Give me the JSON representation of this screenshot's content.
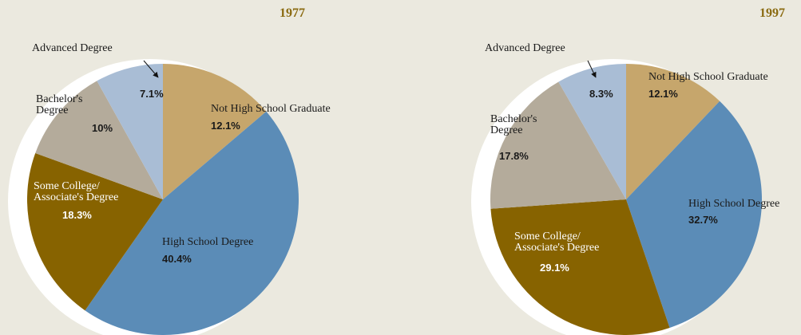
{
  "chart_data": [
    {
      "type": "pie",
      "title": "1977",
      "categories": [
        "Not High School Graduate",
        "High School Degree",
        "Some College/ Associate's Degree",
        "Bachelor's Degree",
        "Advanced Degree"
      ],
      "values": [
        12.1,
        40.4,
        18.3,
        10,
        7.1
      ],
      "value_labels": [
        "12.1%",
        "40.4%",
        "18.3%",
        "10%",
        "7.1%"
      ],
      "colors": [
        "#c6a66c",
        "#5b8cb7",
        "#876300",
        "#b4ab9b",
        "#a9bdd5"
      ]
    },
    {
      "type": "pie",
      "title": "1997",
      "categories": [
        "Not High School Graduate",
        "High School Degree",
        "Some College/ Associate's Degree",
        "Bachelor's Degree",
        "Advanced Degree"
      ],
      "values": [
        12.1,
        32.7,
        29.1,
        17.8,
        8.3
      ],
      "value_labels": [
        "12.1%",
        "32.7%",
        "29.1%",
        "17.8%",
        "8.3%"
      ],
      "colors": [
        "#c6a66c",
        "#5b8cb7",
        "#876300",
        "#b4ab9b",
        "#a9bdd5"
      ]
    }
  ]
}
